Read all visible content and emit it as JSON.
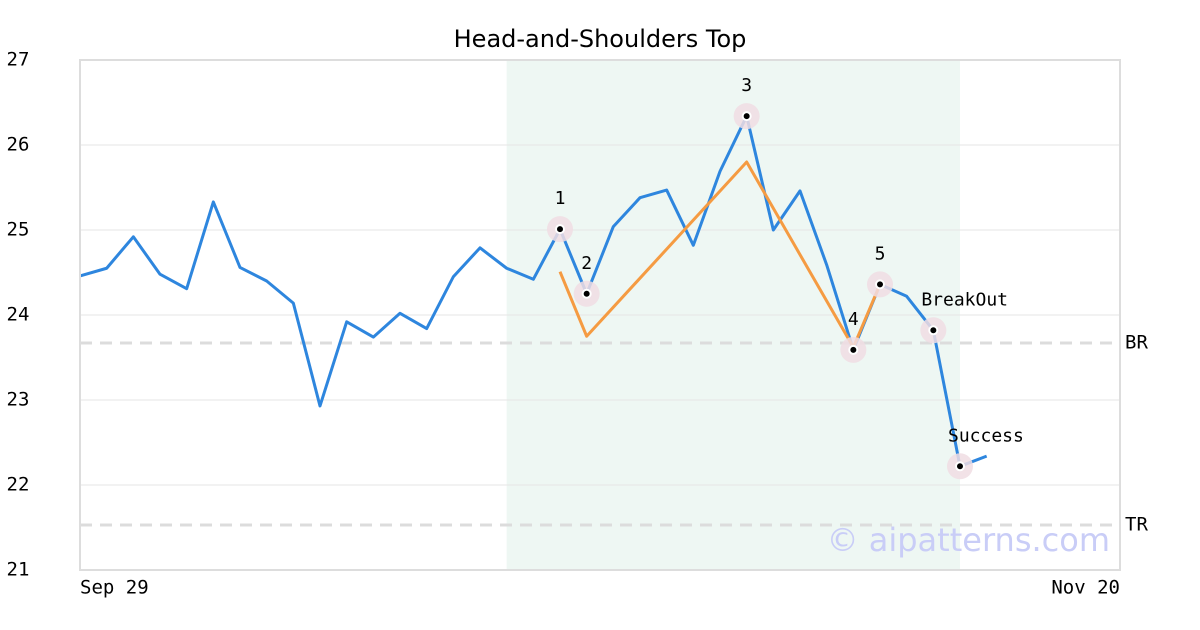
{
  "chart_data": {
    "type": "line",
    "title": "Head-and-Shoulders Top",
    "x": [
      0,
      1,
      2,
      3,
      4,
      5,
      6,
      7,
      8,
      9,
      10,
      11,
      12,
      13,
      14,
      15,
      16,
      17,
      18,
      19,
      20,
      21,
      22,
      23,
      24,
      25,
      26,
      27,
      28,
      29,
      30,
      31,
      32,
      33,
      34
    ],
    "series": [
      {
        "color": "#2e86de",
        "x": [
          0,
          1,
          2,
          3,
          4,
          5,
          6,
          7,
          8,
          9,
          10,
          11,
          12,
          13,
          14,
          15,
          16,
          17,
          18,
          19,
          20,
          21,
          22,
          23,
          24,
          25,
          26,
          27,
          28,
          29,
          30,
          31,
          32,
          33,
          34
        ],
        "values": [
          24.46,
          24.55,
          24.92,
          24.48,
          24.31,
          25.33,
          24.56,
          24.4,
          24.14,
          22.93,
          23.92,
          23.74,
          24.02,
          23.84,
          24.45,
          24.79,
          24.55,
          24.42,
          25.01,
          24.25,
          25.04,
          25.38,
          25.47,
          24.82,
          25.69,
          26.34,
          25.0,
          25.46,
          24.59,
          23.59,
          24.36,
          24.22,
          23.82,
          22.22,
          22.34
        ]
      },
      {
        "color": "#f59b42",
        "x": [
          18,
          19,
          25,
          29,
          30
        ],
        "values": [
          24.51,
          23.75,
          25.8,
          23.62,
          24.36
        ]
      }
    ],
    "markers": [
      {
        "label": "1",
        "x": 18,
        "y": 25.01
      },
      {
        "label": "2",
        "x": 19,
        "y": 24.25
      },
      {
        "label": "3",
        "x": 25,
        "y": 26.34
      },
      {
        "label": "4",
        "x": 29,
        "y": 23.59
      },
      {
        "label": "5",
        "x": 30,
        "y": 24.36
      },
      {
        "label": "BreakOut",
        "x": 32,
        "y": 23.82
      },
      {
        "label": "Success",
        "x": 33,
        "y": 22.22
      }
    ],
    "highlight": [
      16,
      33
    ],
    "reference_lines": [
      {
        "label": "BR",
        "value": 23.67
      },
      {
        "label": "TR",
        "value": 21.53
      }
    ],
    "watermark": "© aipatterns.com",
    "xlim": [
      0,
      39
    ],
    "xticks": [
      {
        "value": 0,
        "label": "Sep 29"
      },
      {
        "value": 39,
        "label": "Nov 20"
      }
    ],
    "ylim": [
      21,
      27
    ],
    "yticks": [
      21,
      22,
      23,
      24,
      25,
      26,
      27
    ],
    "grid": true
  }
}
